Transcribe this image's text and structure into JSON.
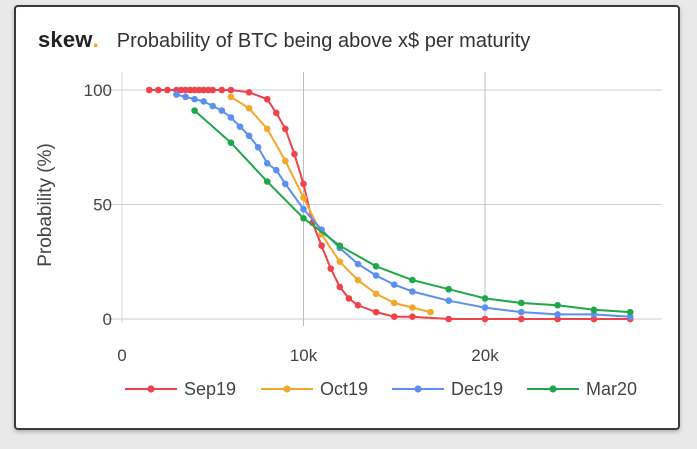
{
  "brand": {
    "name": "skew",
    "dot": "."
  },
  "chart_data": {
    "type": "line",
    "title": "Probability of BTC being above x$ per maturity",
    "xlabel": "",
    "ylabel": "Probability (%)",
    "xlim": [
      0,
      29000
    ],
    "ylim": [
      0,
      100
    ],
    "x_ticks": [
      {
        "value": 0,
        "label": "0"
      },
      {
        "value": 10000,
        "label": "10k"
      },
      {
        "value": 20000,
        "label": "20k"
      }
    ],
    "y_ticks": [
      {
        "value": 0,
        "label": "0"
      },
      {
        "value": 50,
        "label": "50"
      },
      {
        "value": 100,
        "label": "100"
      }
    ],
    "grid": true,
    "legend_position": "bottom",
    "series": [
      {
        "name": "Sep19",
        "color": "#f0424a",
        "points": [
          [
            1500,
            100
          ],
          [
            2000,
            100
          ],
          [
            2500,
            100
          ],
          [
            3000,
            100
          ],
          [
            3250,
            100
          ],
          [
            3500,
            100
          ],
          [
            3750,
            100
          ],
          [
            4000,
            100
          ],
          [
            4250,
            100
          ],
          [
            4500,
            100
          ],
          [
            4750,
            100
          ],
          [
            5000,
            100
          ],
          [
            5500,
            100
          ],
          [
            6000,
            100
          ],
          [
            7000,
            99
          ],
          [
            8000,
            96
          ],
          [
            8500,
            90
          ],
          [
            9000,
            83
          ],
          [
            9500,
            72
          ],
          [
            10000,
            59
          ],
          [
            10500,
            42
          ],
          [
            11000,
            32
          ],
          [
            11500,
            22
          ],
          [
            12000,
            14
          ],
          [
            12500,
            9
          ],
          [
            13000,
            6
          ],
          [
            14000,
            3
          ],
          [
            15000,
            1
          ],
          [
            16000,
            1
          ],
          [
            18000,
            0
          ],
          [
            20000,
            0
          ],
          [
            22000,
            0
          ],
          [
            24000,
            0
          ],
          [
            26000,
            0
          ],
          [
            28000,
            0
          ]
        ]
      },
      {
        "name": "Oct19",
        "color": "#f0a92b",
        "points": [
          [
            6000,
            97
          ],
          [
            7000,
            92
          ],
          [
            8000,
            83
          ],
          [
            9000,
            69
          ],
          [
            10000,
            53
          ],
          [
            11000,
            37
          ],
          [
            12000,
            25
          ],
          [
            13000,
            17
          ],
          [
            14000,
            11
          ],
          [
            15000,
            7
          ],
          [
            16000,
            5
          ],
          [
            17000,
            3
          ]
        ]
      },
      {
        "name": "Dec19",
        "color": "#5b8ff0",
        "points": [
          [
            3000,
            98
          ],
          [
            3500,
            97
          ],
          [
            4000,
            96
          ],
          [
            4500,
            95
          ],
          [
            5000,
            93
          ],
          [
            5500,
            91
          ],
          [
            6000,
            88
          ],
          [
            6500,
            84
          ],
          [
            7000,
            80
          ],
          [
            7500,
            75
          ],
          [
            8000,
            68
          ],
          [
            8500,
            65
          ],
          [
            9000,
            59
          ],
          [
            10000,
            48
          ],
          [
            11000,
            39
          ],
          [
            12000,
            31
          ],
          [
            13000,
            24
          ],
          [
            14000,
            19
          ],
          [
            15000,
            15
          ],
          [
            16000,
            12
          ],
          [
            18000,
            8
          ],
          [
            20000,
            5
          ],
          [
            22000,
            3
          ],
          [
            24000,
            2
          ],
          [
            26000,
            2
          ],
          [
            28000,
            1
          ]
        ]
      },
      {
        "name": "Mar20",
        "color": "#1ea84a",
        "points": [
          [
            4000,
            91
          ],
          [
            6000,
            77
          ],
          [
            8000,
            60
          ],
          [
            10000,
            44
          ],
          [
            12000,
            32
          ],
          [
            14000,
            23
          ],
          [
            16000,
            17
          ],
          [
            18000,
            13
          ],
          [
            20000,
            9
          ],
          [
            22000,
            7
          ],
          [
            24000,
            6
          ],
          [
            26000,
            4
          ],
          [
            28000,
            3
          ]
        ]
      }
    ]
  }
}
